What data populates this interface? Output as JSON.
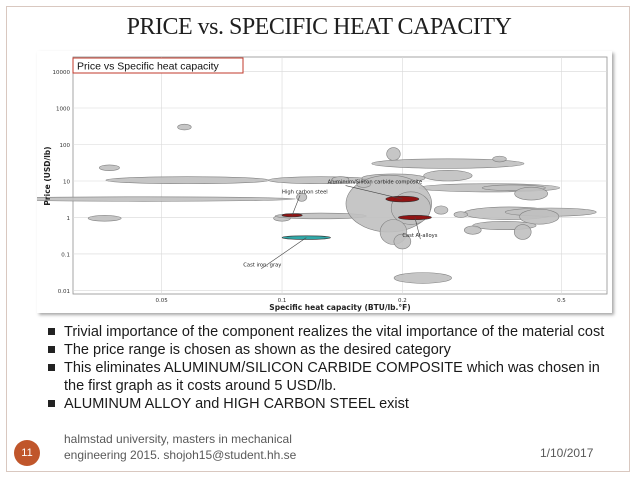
{
  "slide": {
    "title": "PRICE vs. SPECIFIC HEAT CAPACITY",
    "number": "11",
    "footer_line1": "halmstad university,  masters in mechanical",
    "footer_line2": "engineering 2015.  shojoh15@student.hh.se",
    "date": "1/10/2017"
  },
  "bullets": [
    "Trivial importance of the component realizes the vital importance of the material cost",
    "The price range is chosen as shown as the desired category",
    "This eliminates ALUMINUM/SILICON CARBIDE COMPOSITE which was chosen in the first graph as it costs around 5 USD/lb.",
    "ALUMINUM ALLOY and HIGH CARBON STEEL exist"
  ],
  "chart_data": {
    "type": "scatter",
    "title": "Price vs Specific heat capacity",
    "xlabel": "Specific heat capacity (BTU/lb.°F)",
    "ylabel": "Price (USD/lb)",
    "x_scale": "log",
    "y_scale": "log",
    "xlim": [
      0.03,
      0.65
    ],
    "ylim": [
      0.008,
      25000
    ],
    "x_ticks": [
      0.05,
      0.1,
      0.2,
      0.5
    ],
    "x_tick_labels": [
      "0.05",
      "0.1",
      "0.2",
      "0.5"
    ],
    "y_ticks": [
      0.01,
      0.1,
      1,
      10,
      100,
      1000,
      10000
    ],
    "y_tick_labels": [
      "0.01",
      "0.1",
      "1",
      "10",
      "100",
      "1000",
      "10000"
    ],
    "grid": true,
    "colors": {
      "bubble": "#c0c0c0",
      "bubble_stroke": "#808080",
      "highlight_red": "#8b0000",
      "highlight_teal": "#19a0a0"
    },
    "bubbles": [
      {
        "x": 0.057,
        "y": 300,
        "w": 1.04,
        "h": 1.2
      },
      {
        "x": 0.037,
        "y": 23,
        "w": 1.06,
        "h": 1.2
      },
      {
        "x": 0.058,
        "y": 10.5,
        "w": 1.6,
        "h": 1.25
      },
      {
        "x": 0.045,
        "y": 3.2,
        "w": 2.4,
        "h": 1.15
      },
      {
        "x": 0.036,
        "y": 0.95,
        "w": 1.1,
        "h": 1.2
      },
      {
        "x": 0.125,
        "y": 10.5,
        "w": 1.35,
        "h": 1.25
      },
      {
        "x": 0.14,
        "y": 11,
        "w": 1.05,
        "h": 1.2
      },
      {
        "x": 0.112,
        "y": 3.6,
        "w": 1.03,
        "h": 1.3
      },
      {
        "x": 0.1,
        "y": 0.95,
        "w": 1.05,
        "h": 1.2
      },
      {
        "x": 0.125,
        "y": 1.1,
        "w": 1.3,
        "h": 1.2
      },
      {
        "x": 0.19,
        "y": 55,
        "w": 1.04,
        "h": 1.5
      },
      {
        "x": 0.26,
        "y": 30,
        "w": 1.55,
        "h": 1.35
      },
      {
        "x": 0.26,
        "y": 14,
        "w": 1.15,
        "h": 1.4
      },
      {
        "x": 0.33,
        "y": 6.5,
        "w": 1.5,
        "h": 1.3
      },
      {
        "x": 0.19,
        "y": 12,
        "w": 1.2,
        "h": 1.3
      },
      {
        "x": 0.185,
        "y": 2.4,
        "w": 1.28,
        "h": 6
      },
      {
        "x": 0.21,
        "y": 1.8,
        "w": 1.12,
        "h": 2.8
      },
      {
        "x": 0.19,
        "y": 0.4,
        "w": 1.08,
        "h": 2.2
      },
      {
        "x": 0.2,
        "y": 0.22,
        "w": 1.05,
        "h": 1.6
      },
      {
        "x": 0.225,
        "y": 0.022,
        "w": 1.18,
        "h": 1.4
      },
      {
        "x": 0.38,
        "y": 6.5,
        "w": 1.2,
        "h": 1.2
      },
      {
        "x": 0.42,
        "y": 4.5,
        "w": 1.1,
        "h": 1.5
      },
      {
        "x": 0.37,
        "y": 1.3,
        "w": 1.3,
        "h": 1.5
      },
      {
        "x": 0.47,
        "y": 1.4,
        "w": 1.3,
        "h": 1.3
      },
      {
        "x": 0.44,
        "y": 1.05,
        "w": 1.12,
        "h": 1.6
      },
      {
        "x": 0.36,
        "y": 0.6,
        "w": 1.2,
        "h": 1.3
      },
      {
        "x": 0.4,
        "y": 0.4,
        "w": 1.05,
        "h": 1.6
      },
      {
        "x": 0.3,
        "y": 0.45,
        "w": 1.05,
        "h": 1.3
      },
      {
        "x": 0.35,
        "y": 40,
        "w": 1.04,
        "h": 1.2
      },
      {
        "x": 0.25,
        "y": 1.6,
        "w": 1.04,
        "h": 1.3
      },
      {
        "x": 0.28,
        "y": 1.2,
        "w": 1.04,
        "h": 1.2
      },
      {
        "x": 0.16,
        "y": 8,
        "w": 1.04,
        "h": 1.2
      }
    ],
    "highlighted": [
      {
        "x": 0.2,
        "y": 3.2,
        "w": 1.1,
        "h": 1.2,
        "color": "red",
        "label": "Aluminum/Silicon carbide composite",
        "label_x": 0.13,
        "label_y": 8.5
      },
      {
        "x": 0.215,
        "y": 1.0,
        "w": 1.1,
        "h": 1.15,
        "color": "red",
        "label": "Cast Al-alloys",
        "label_x": 0.2,
        "label_y": 0.29
      },
      {
        "x": 0.106,
        "y": 1.15,
        "w": 1.06,
        "h": 1.1,
        "color": "red",
        "label": "High carbon steel",
        "label_x": 0.1,
        "label_y": 4.6
      },
      {
        "x": 0.115,
        "y": 0.28,
        "w": 1.15,
        "h": 1.12,
        "color": "teal",
        "label": "Cast iron, gray",
        "label_x": 0.08,
        "label_y": 0.045
      }
    ]
  }
}
